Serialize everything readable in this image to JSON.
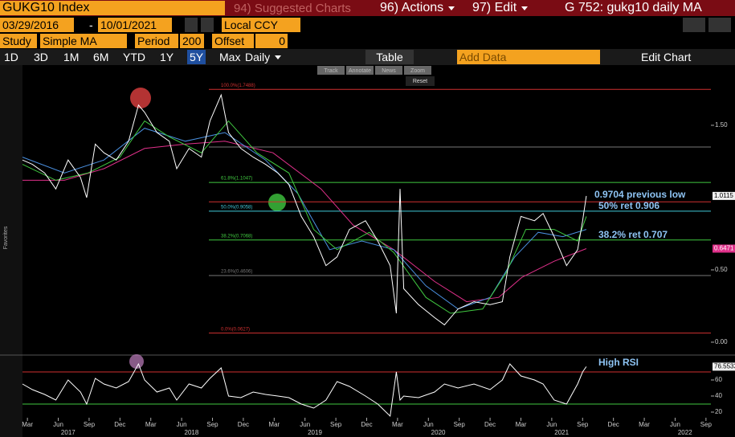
{
  "header": {
    "security": "GUKG10 Index",
    "suggested": "94) Suggested Charts",
    "actions": "96) Actions",
    "edit": "97) Edit",
    "title": "G 752: gukg10 daily MA"
  },
  "controls": {
    "start_date": "03/29/2016",
    "date_separator": "-",
    "end_date": "10/01/2021",
    "currency": "Local CCY",
    "study_label": "Study",
    "study": "Simple MA",
    "period_label": "Period",
    "period": 200,
    "offset_label": "Offset",
    "offset": 0
  },
  "toolbar": {
    "ranges": [
      "1D",
      "3D",
      "1M",
      "6M",
      "YTD",
      "1Y",
      "5Y",
      "Max"
    ],
    "active_range": 6,
    "frequency": "Daily",
    "table": "Table",
    "add_data": "Add Data",
    "edit_chart": "Edit Chart",
    "mini_tools": [
      "Track",
      "Annotate",
      "News",
      "Zoom"
    ],
    "reset": "Reset",
    "side_label": "Favorites"
  },
  "chart_data": [
    {
      "type": "line",
      "xlim": [
        2017.13,
        2022.71
      ],
      "ylim": [
        -0.078,
        1.911
      ],
      "yticks": [
        {
          "value": 0,
          "label": "0.00"
        },
        {
          "value": 0.5,
          "label": "0.50"
        },
        {
          "value": 1.5,
          "label": "1.50"
        }
      ],
      "series": [
        {
          "color": "#e0308a",
          "x": [
            2017.13,
            2017.47,
            2017.79,
            2018.12,
            2018.45,
            2018.77,
            2019.16,
            2019.55,
            2019.81,
            2020.14,
            2020.47,
            2020.73,
            2020.99,
            2021.18,
            2021.44,
            2021.7
          ],
          "values": [
            1.12,
            1.12,
            1.2,
            1.34,
            1.37,
            1.39,
            1.31,
            1.06,
            0.81,
            0.64,
            0.42,
            0.28,
            0.31,
            0.45,
            0.56,
            0.6471
          ],
          "last_label": "0.6471"
        },
        {
          "color": "#4a90e0",
          "x": [
            2017.13,
            2017.47,
            2017.79,
            2018.12,
            2018.45,
            2018.77,
            2019.1,
            2019.36,
            2019.62,
            2019.88,
            2020.14,
            2020.4,
            2020.66,
            2020.92,
            2021.12,
            2021.31,
            2021.51,
            2021.7
          ],
          "values": [
            1.28,
            1.17,
            1.26,
            1.48,
            1.39,
            1.45,
            1.26,
            1.03,
            0.64,
            0.7,
            0.64,
            0.39,
            0.23,
            0.31,
            0.59,
            0.76,
            0.73,
            0.78
          ]
        },
        {
          "color": "#40c840",
          "x": [
            2017.13,
            2017.4,
            2017.66,
            2017.92,
            2018.12,
            2018.32,
            2018.58,
            2018.8,
            2019.03,
            2019.29,
            2019.49,
            2019.68,
            2019.94,
            2020.14,
            2020.4,
            2020.6,
            2020.86,
            2021.05,
            2021.21,
            2021.44,
            2021.63,
            2021.7
          ],
          "values": [
            1.23,
            1.12,
            1.17,
            1.28,
            1.53,
            1.42,
            1.31,
            1.53,
            1.31,
            1.17,
            0.78,
            0.64,
            0.76,
            0.62,
            0.31,
            0.2,
            0.23,
            0.48,
            0.78,
            0.78,
            0.7,
            0.87
          ]
        },
        {
          "color": "#ffffff",
          "x": [
            2017.13,
            2017.21,
            2017.31,
            2017.4,
            2017.5,
            2017.6,
            2017.65,
            2017.72,
            2017.79,
            2017.89,
            2017.99,
            2018.07,
            2018.12,
            2018.22,
            2018.32,
            2018.38,
            2018.48,
            2018.58,
            2018.65,
            2018.74,
            2018.8,
            2018.9,
            2019.0,
            2019.1,
            2019.2,
            2019.29,
            2019.39,
            2019.49,
            2019.59,
            2019.68,
            2019.78,
            2019.91,
            2020.01,
            2020.11,
            2020.16,
            2020.19,
            2020.22,
            2020.34,
            2020.47,
            2020.55,
            2020.66,
            2020.79,
            2020.92,
            2021.02,
            2021.08,
            2021.17,
            2021.28,
            2021.35,
            2021.44,
            2021.54,
            2021.63,
            2021.67,
            2021.7
          ],
          "values": [
            1.26,
            1.23,
            1.17,
            1.06,
            1.26,
            1.14,
            1.0,
            1.37,
            1.31,
            1.26,
            1.39,
            1.64,
            1.59,
            1.45,
            1.39,
            1.2,
            1.34,
            1.28,
            1.53,
            1.71,
            1.45,
            1.34,
            1.28,
            1.23,
            1.17,
            1.09,
            0.87,
            0.73,
            0.53,
            0.59,
            0.78,
            0.84,
            0.7,
            0.53,
            0.2,
            1.06,
            0.37,
            0.26,
            0.17,
            0.12,
            0.23,
            0.28,
            0.26,
            0.28,
            0.59,
            0.87,
            0.84,
            0.89,
            0.73,
            0.53,
            0.64,
            0.84,
            1.0115
          ],
          "last_label": "1.0115"
        }
      ],
      "levels": [
        {
          "label": "100.0%(1.7488)",
          "value": 1.7488,
          "color": "#d03030"
        },
        {
          "value": 1.35,
          "color": "#777777"
        },
        {
          "label": "61.8%(1.1047)",
          "value": 1.1047,
          "color": "#40c840"
        },
        {
          "value": 0.9704,
          "color": "#d03030"
        },
        {
          "label": "50.0%(0.9058)",
          "value": 0.9058,
          "color": "#40c8d8"
        },
        {
          "label": "38.2%(0.7068)",
          "value": 0.7068,
          "color": "#40c840"
        },
        {
          "label": "23.6%(0.4606)",
          "value": 0.4606,
          "color": "#777777"
        },
        {
          "label": "0.0%(0.0627)",
          "value": 0.0627,
          "color": "#d03030"
        }
      ],
      "annotations": [
        "0.9704 previous low",
        "50% ret 0.906",
        "38.2% ret 0.707"
      ]
    },
    {
      "type": "line",
      "xlim": [
        2017.13,
        2022.71
      ],
      "ylim": [
        13,
        90
      ],
      "yticks": [
        20,
        40,
        60
      ],
      "levels": [
        {
          "value": 70,
          "color": "#d03030"
        },
        {
          "value": 30,
          "color": "#40c840"
        }
      ],
      "series": [
        {
          "color": "#ffffff",
          "x": [
            2017.13,
            2017.21,
            2017.31,
            2017.4,
            2017.5,
            2017.6,
            2017.65,
            2017.72,
            2017.79,
            2017.89,
            2017.99,
            2018.07,
            2018.12,
            2018.22,
            2018.32,
            2018.38,
            2018.48,
            2018.58,
            2018.65,
            2018.74,
            2018.8,
            2018.9,
            2019.0,
            2019.1,
            2019.2,
            2019.29,
            2019.39,
            2019.49,
            2019.59,
            2019.68,
            2019.78,
            2019.91,
            2020.01,
            2020.11,
            2020.16,
            2020.19,
            2020.22,
            2020.34,
            2020.47,
            2020.55,
            2020.66,
            2020.79,
            2020.92,
            2021.02,
            2021.08,
            2021.17,
            2021.28,
            2021.35,
            2021.44,
            2021.54,
            2021.63,
            2021.67,
            2021.7
          ],
          "values": [
            55,
            48,
            42,
            35,
            60,
            45,
            30,
            62,
            55,
            50,
            58,
            80,
            60,
            45,
            50,
            35,
            55,
            50,
            62,
            75,
            40,
            38,
            45,
            42,
            40,
            38,
            30,
            25,
            35,
            58,
            52,
            40,
            30,
            15,
            70,
            35,
            40,
            38,
            45,
            55,
            50,
            55,
            48,
            60,
            80,
            65,
            60,
            55,
            35,
            30,
            55,
            70,
            76.5533
          ],
          "last_label": "76.5533"
        }
      ],
      "annotations": [
        "High RSI"
      ],
      "xticks": [
        {
          "value": 2017.17,
          "label": "Mar"
        },
        {
          "value": 2017.42,
          "label": "Jun"
        },
        {
          "value": 2017.67,
          "label": "Sep"
        },
        {
          "value": 2017.92,
          "label": "Dec"
        },
        {
          "value": 2018.17,
          "label": "Mar"
        },
        {
          "value": 2018.42,
          "label": "Jun"
        },
        {
          "value": 2018.67,
          "label": "Sep"
        },
        {
          "value": 2018.92,
          "label": "Dec"
        },
        {
          "value": 2019.17,
          "label": "Mar"
        },
        {
          "value": 2019.42,
          "label": "Jun"
        },
        {
          "value": 2019.67,
          "label": "Sep"
        },
        {
          "value": 2019.92,
          "label": "Dec"
        },
        {
          "value": 2020.17,
          "label": "Mar"
        },
        {
          "value": 2020.42,
          "label": "Jun"
        },
        {
          "value": 2020.67,
          "label": "Sep"
        },
        {
          "value": 2020.92,
          "label": "Dec"
        },
        {
          "value": 2021.17,
          "label": "Mar"
        },
        {
          "value": 2021.42,
          "label": "Jun"
        },
        {
          "value": 2021.67,
          "label": "Sep"
        },
        {
          "value": 2021.92,
          "label": "Dec"
        },
        {
          "value": 2022.17,
          "label": "Mar"
        },
        {
          "value": 2022.42,
          "label": "Jun"
        },
        {
          "value": 2022.67,
          "label": "Sep"
        }
      ],
      "year_labels": [
        2017,
        2018,
        2019,
        2020,
        2021,
        2022
      ]
    }
  ]
}
